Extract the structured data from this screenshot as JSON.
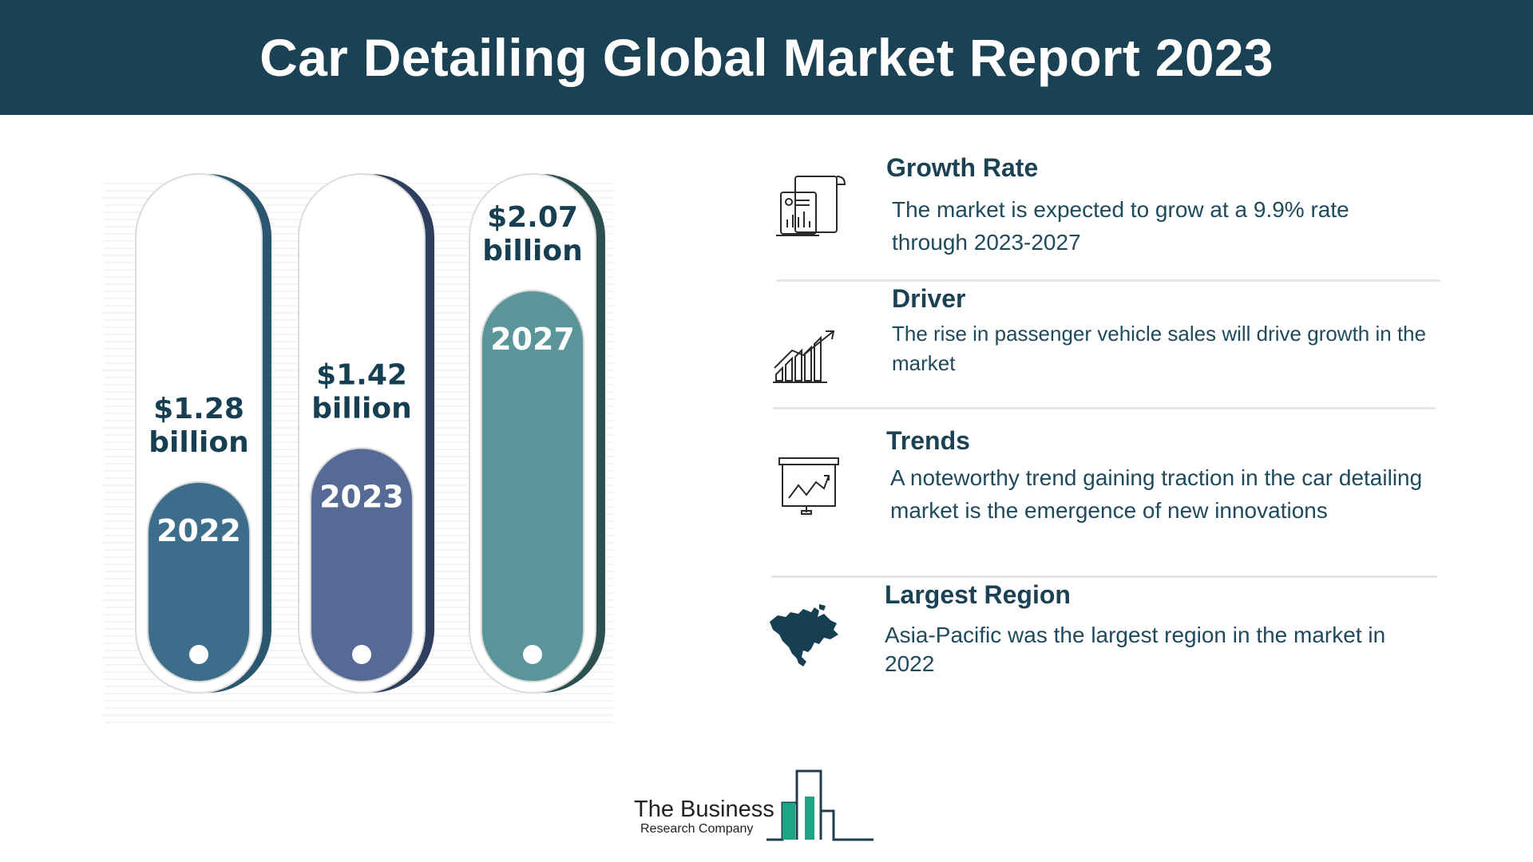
{
  "header": {
    "title": "Car Detailing Global Market Report 2023"
  },
  "chart_data": {
    "type": "bar",
    "categories": [
      "2022",
      "2023",
      "2027"
    ],
    "values": [
      1.28,
      1.42,
      2.07
    ],
    "value_labels": [
      [
        "$1.28",
        "billion"
      ],
      [
        "$1.42",
        "billion"
      ],
      [
        "$2.07",
        "billion"
      ]
    ],
    "colors": [
      "#3c6e8c",
      "#566a96",
      "#5a9599"
    ],
    "shadow_colors": [
      "#2b5670",
      "#2e3f5e",
      "#2c4f4f"
    ]
  },
  "info": {
    "items": [
      {
        "icon": "report-icon",
        "title": "Growth Rate",
        "lines": [
          "The market is expected to grow at a 9.9% rate",
          "through 2023-2027"
        ]
      },
      {
        "icon": "bar-growth-icon",
        "title": "Driver",
        "lines": [
          "The rise in passenger vehicle sales will drive growth in the",
          "market"
        ]
      },
      {
        "icon": "presentation-chart-icon",
        "title": "Trends",
        "lines": [
          "A noteworthy trend gaining traction in the car detailing",
          "market is the emergence of new innovations"
        ]
      },
      {
        "icon": "north-america-map-icon",
        "title": "Largest Region",
        "lines": [
          "Asia-Pacific was the largest region in the market in",
          "2022"
        ]
      }
    ]
  },
  "logo": {
    "name": "The Business",
    "sub": "Research Company"
  }
}
